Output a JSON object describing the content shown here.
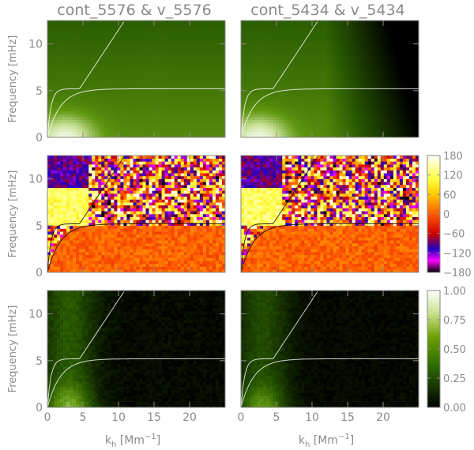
{
  "chart_data": {
    "type": "heatmap",
    "columns": [
      {
        "title": "cont_5576 & v_5576"
      },
      {
        "title": "cont_5434 & v_5434"
      }
    ],
    "rows": [
      {
        "quantity": "power",
        "colormap": "green"
      },
      {
        "quantity": "phase",
        "colormap": "phase",
        "colorbar_ticks": [
          "180",
          "120",
          "60",
          "0",
          "−60",
          "−120",
          "−180"
        ],
        "colorbar_range": [
          -180,
          180
        ]
      },
      {
        "quantity": "coherence",
        "colormap": "green",
        "colorbar_ticks": [
          "1.00",
          "0.75",
          "0.50",
          "0.25",
          "0.00"
        ],
        "colorbar_range": [
          0,
          1
        ]
      }
    ],
    "ylabel": "Frequency [mHz]",
    "xlabel_main": "k",
    "xlabel_sub": "h",
    "xlabel_unit_open": " [Mm",
    "xlabel_unit_sup": "−1",
    "xlabel_unit_close": "]",
    "xlim": [
      0,
      25
    ],
    "ylim": [
      0,
      12.5
    ],
    "xticks": [
      "0",
      "5",
      "10",
      "15",
      "20"
    ],
    "yticks": [
      "0",
      "5",
      "10"
    ],
    "curves": {
      "f_mode_slope_mHz_per_Mm": 1.15,
      "acoustic_cutoff_mHz": 5.2
    },
    "colors": {
      "axis": "#8a8a8a",
      "green_dark": "#0b1a00",
      "green_mid": "#4f8a12",
      "green_light": "#ffffff"
    }
  }
}
